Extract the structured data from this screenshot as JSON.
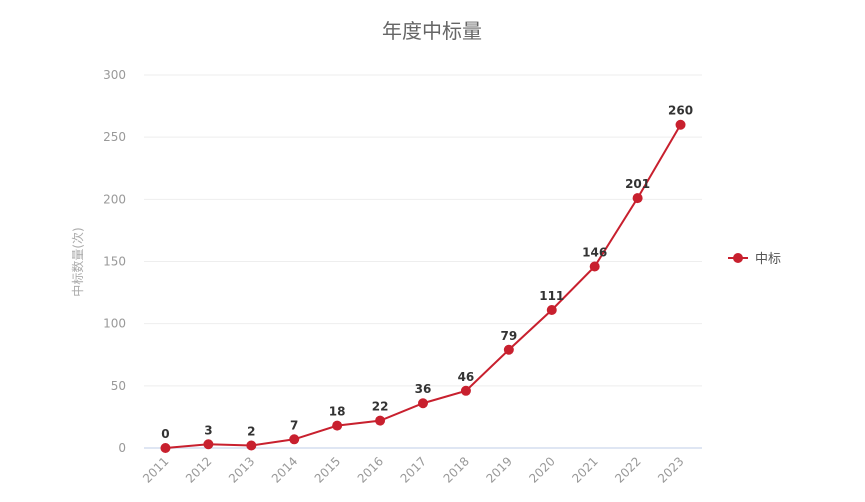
{
  "chart_data": {
    "type": "line",
    "title": "年度中标量",
    "xlabel": "",
    "ylabel": "中标数量(次)",
    "categories": [
      "2011",
      "2012",
      "2013",
      "2014",
      "2015",
      "2016",
      "2017",
      "2018",
      "2019",
      "2020",
      "2021",
      "2022",
      "2023"
    ],
    "series": [
      {
        "name": "中标",
        "color": "#c8202e",
        "values": [
          0,
          3,
          2,
          7,
          18,
          22,
          36,
          46,
          79,
          111,
          146,
          201,
          260
        ]
      }
    ],
    "ylim": [
      0,
      300
    ],
    "yticks": [
      0,
      50,
      100,
      150,
      200,
      250,
      300
    ],
    "grid": true,
    "legend_position": "right",
    "data_labels": true
  }
}
